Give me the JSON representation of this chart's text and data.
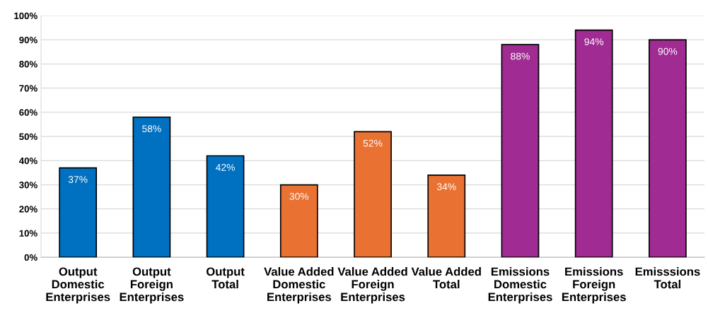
{
  "chart_data": {
    "type": "bar",
    "categories": [
      "Output\nDomestic\nEnterprises",
      "Output\nForeign\nEnterprises",
      "Output\nTotal",
      "Value Added\nDomestic\nEnterprises",
      "Value Added\nForeign\nEnterprises",
      "Value Added\nTotal",
      "Emissions\nDomestic\nEnterprises",
      "Emissions\nForeign\nEnterprises",
      "Emisssions\nTotal"
    ],
    "values": [
      37,
      58,
      42,
      30,
      52,
      34,
      88,
      94,
      90
    ],
    "value_labels": [
      "37%",
      "58%",
      "42%",
      "30%",
      "52%",
      "34%",
      "88%",
      "94%",
      "90%"
    ],
    "colors": [
      "#0070c0",
      "#0070c0",
      "#0070c0",
      "#e97132",
      "#e97132",
      "#e97132",
      "#a02b93",
      "#a02b93",
      "#a02b93"
    ],
    "ylim": [
      0,
      100
    ],
    "yticks": [
      {
        "value": 0,
        "label": "0%"
      },
      {
        "value": 10,
        "label": "10%"
      },
      {
        "value": 20,
        "label": "20%"
      },
      {
        "value": 30,
        "label": "30%"
      },
      {
        "value": 40,
        "label": "40%"
      },
      {
        "value": 50,
        "label": "50%"
      },
      {
        "value": 60,
        "label": "60%"
      },
      {
        "value": 70,
        "label": "70%"
      },
      {
        "value": 80,
        "label": "80%"
      },
      {
        "value": 90,
        "label": "90%"
      },
      {
        "value": 100,
        "label": "100%"
      }
    ],
    "grid": "y",
    "legend": false
  }
}
